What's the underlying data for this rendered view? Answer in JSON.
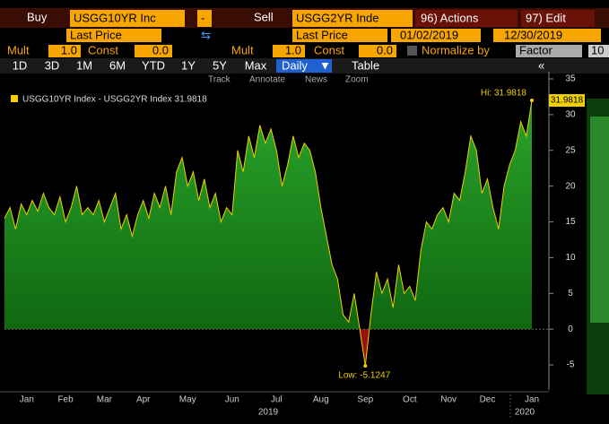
{
  "toolbar": {
    "buy": "Buy",
    "security1": "USGG10YR Inc",
    "minus": "-",
    "sell": "Sell",
    "security2": "USGG2YR Inde",
    "actions": "96) Actions",
    "edit": "97) Edit",
    "field1": "Last Price",
    "field2": "Last Price",
    "start_date": "01/02/2019",
    "end_date": "12/30/2019",
    "mult1_label": "Mult",
    "mult1": "1.0",
    "const1_label": "Const",
    "const1": "0.0",
    "mult2_label": "Mult",
    "mult2": "1.0",
    "const2_label": "Const",
    "const2": "0.0",
    "normalize": "Normalize by",
    "factor": "Factor",
    "factor_value": "10",
    "periods": [
      "1D",
      "3D",
      "1M",
      "6M",
      "YTD",
      "1Y",
      "5Y",
      "Max"
    ],
    "frequency": "Daily",
    "table": "Table",
    "tools": [
      "Track",
      "Annotate",
      "News",
      "Zoom"
    ]
  },
  "chart_data": {
    "type": "area",
    "series": [
      {
        "name": "USGG10YR Index - USGG2YR Index 31.9818",
        "color": "#f0d000",
        "values": [
          15.5,
          17,
          14,
          17.5,
          16,
          18,
          16.5,
          19,
          17,
          16,
          18.5,
          15,
          17,
          20,
          16,
          17,
          16,
          18,
          15,
          17,
          19,
          14,
          16,
          13,
          16,
          18,
          15.5,
          19,
          17,
          20,
          16,
          22,
          24,
          20,
          22,
          18,
          21,
          17,
          19,
          15,
          17,
          16,
          25,
          22,
          27,
          24,
          28.5,
          26,
          28,
          25,
          20,
          23,
          27,
          24,
          26,
          25,
          22,
          17,
          13,
          9,
          7,
          2,
          1,
          5,
          0,
          -5.1247,
          2,
          8,
          5,
          7,
          3,
          9,
          5,
          6,
          4,
          11,
          15,
          14,
          16,
          17,
          15,
          19,
          18,
          22,
          27,
          25,
          19,
          21,
          17,
          14,
          20,
          23,
          25,
          29,
          27,
          31.9818
        ]
      }
    ],
    "categories": [
      null,
      null,
      null,
      null,
      "Jan",
      null,
      null,
      null,
      null,
      null,
      null,
      "Feb",
      null,
      null,
      null,
      null,
      null,
      null,
      "Mar",
      null,
      null,
      null,
      null,
      null,
      null,
      "Apr",
      null,
      null,
      null,
      null,
      null,
      null,
      null,
      "May",
      null,
      null,
      null,
      null,
      null,
      null,
      null,
      "Jun",
      null,
      null,
      null,
      null,
      null,
      null,
      null,
      "Jul",
      null,
      null,
      null,
      null,
      null,
      null,
      null,
      "Aug",
      null,
      null,
      null,
      null,
      null,
      null,
      null,
      "Sep",
      null,
      null,
      null,
      null,
      null,
      null,
      null,
      "Oct",
      null,
      null,
      null,
      null,
      null,
      null,
      "Nov",
      null,
      null,
      null,
      null,
      null,
      null,
      "Dec",
      null,
      null,
      null,
      null,
      null,
      null,
      null,
      "Jan"
    ],
    "year_labels": [
      "2019",
      "2020"
    ],
    "ylim": [
      -8.5,
      36
    ],
    "yticks": [
      -5,
      0,
      5,
      10,
      15,
      20,
      25,
      30,
      35
    ],
    "annotations": {
      "high": "Hi: 31.9818",
      "low": "Low: -5.1247",
      "last": "31.9818"
    }
  }
}
